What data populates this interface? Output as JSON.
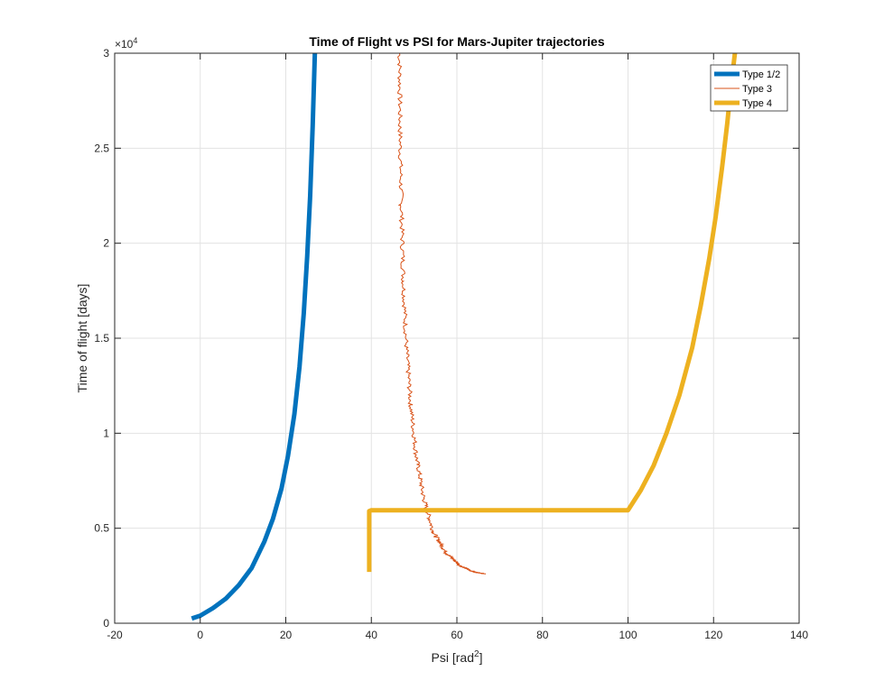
{
  "chart_data": {
    "type": "line",
    "title": "Time of Flight vs PSI for Mars-Jupiter trajectories",
    "xlabel": "Psi [rad",
    "xlabel_sup": "2",
    "xlabel_suffix": "]",
    "ylabel": "Time of flight [days]",
    "y_exponent_base": "×10",
    "y_exponent_power": "4",
    "xlim": [
      -20,
      140
    ],
    "ylim": [
      0,
      30000
    ],
    "x_ticks": [
      -20,
      0,
      20,
      40,
      60,
      80,
      100,
      120,
      140
    ],
    "x_tick_labels": [
      "-20",
      "0",
      "20",
      "40",
      "60",
      "80",
      "100",
      "120",
      "140"
    ],
    "y_ticks": [
      0,
      5000,
      10000,
      15000,
      20000,
      25000,
      30000
    ],
    "y_tick_labels": [
      "0",
      "0.5",
      "1",
      "1.5",
      "2",
      "2.5",
      "3"
    ],
    "grid": true,
    "legend_position": "top-right",
    "series": [
      {
        "name": "Type 1/2",
        "color": "#0072BD",
        "style": "thick",
        "x": [
          -2,
          0,
          3,
          6,
          9,
          12,
          15,
          17,
          19,
          20.5,
          22,
          23.2,
          24.2,
          25,
          25.7,
          26.3,
          26.8
        ],
        "y": [
          250,
          400,
          800,
          1300,
          2000,
          2900,
          4300,
          5500,
          7100,
          8800,
          11000,
          13500,
          16300,
          19300,
          22500,
          26200,
          30000
        ]
      },
      {
        "name": "Type 3",
        "color": "#D95319",
        "style": "noisy",
        "x": [
          46.6,
          46.7,
          47,
          47.5,
          48.2,
          49.2,
          50.5,
          52.2,
          54.5,
          57.5,
          61,
          64,
          66.5
        ],
        "y": [
          30000,
          26000,
          22000,
          18000,
          14500,
          11500,
          8800,
          6600,
          4800,
          3700,
          3000,
          2700,
          2600
        ]
      },
      {
        "name": "Type 4",
        "color": "#EDB120",
        "style": "thick",
        "x": [
          39.5,
          39.5,
          40,
          100,
          103,
          106,
          109,
          112,
          115,
          117,
          119,
          120.5,
          122,
          123.2,
          124.2,
          125
        ],
        "y": [
          2700,
          5900,
          5950,
          5950,
          7000,
          8300,
          10000,
          12000,
          14500,
          16700,
          19200,
          21400,
          24000,
          26300,
          28500,
          30000
        ]
      }
    ]
  }
}
